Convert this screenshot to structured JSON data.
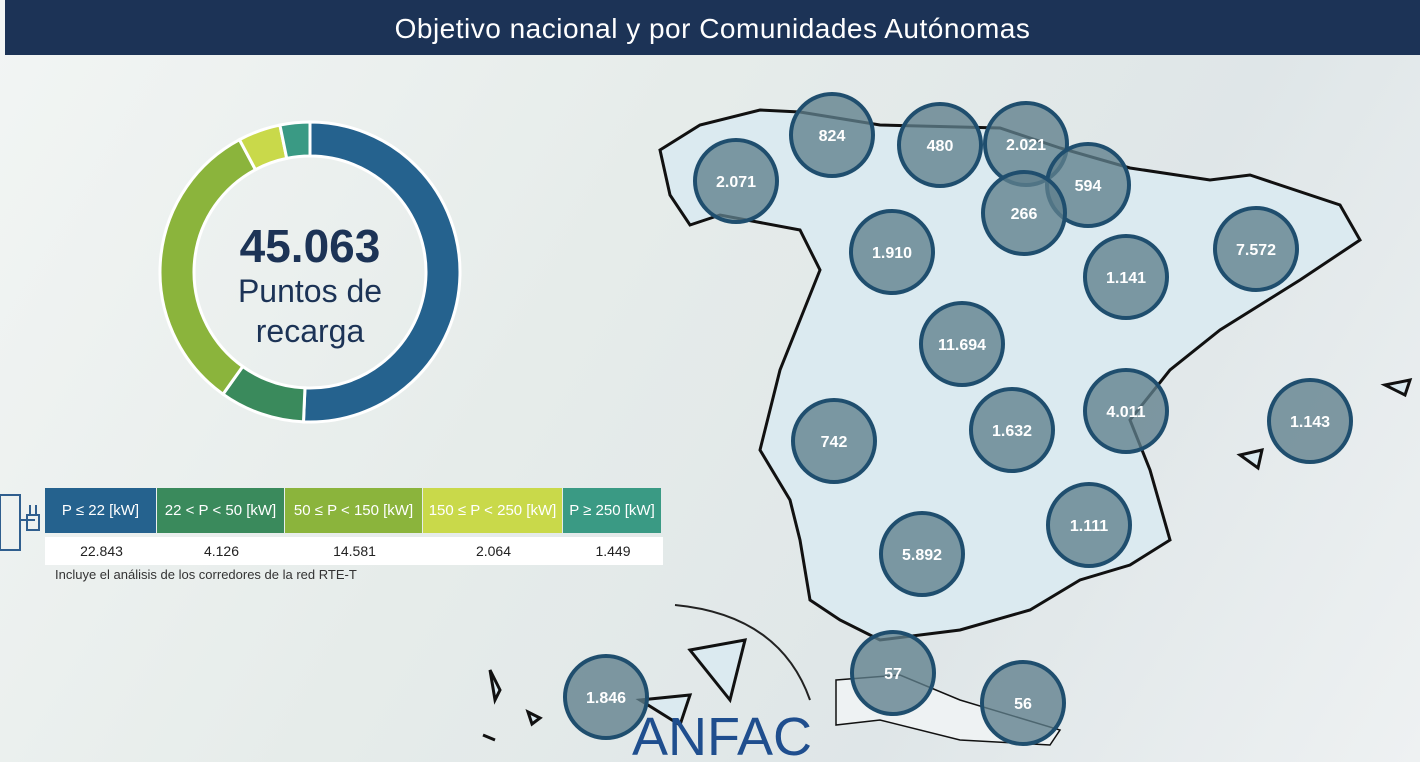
{
  "header": {
    "title": "Objetivo nacional y por Comunidades Autónomas"
  },
  "chart_data": {
    "type": "pie",
    "donut": true,
    "total": {
      "value": 45063,
      "label": "45.063"
    },
    "center_label": "Puntos de recarga",
    "categories": [
      "P ≤ 22 [kW]",
      "22 < P < 50 [kW]",
      "50 ≤ P < 150 [kW]",
      "150 ≤ P < 250 [kW]",
      "P ≥ 250 [kW]"
    ],
    "values": [
      22843,
      4126,
      14581,
      2064,
      1449
    ],
    "value_labels": [
      "22.843",
      "4.126",
      "14.581",
      "2.064",
      "1.449"
    ],
    "colors": [
      "#25628e",
      "#3a8a5c",
      "#8bb43c",
      "#c9d94a",
      "#3a9a84"
    ],
    "note": "Incluye el análisis de los corredores de la red RTE-T"
  },
  "map": {
    "regions": [
      "2.071",
      "824",
      "480",
      "2.021",
      "594",
      "266",
      "1.910",
      "1.141",
      "7.572",
      "11.694",
      "4.011",
      "1.143",
      "742",
      "1.632",
      "1.111",
      "5.892",
      "57",
      "56",
      "1.846"
    ]
  },
  "logo": "ANFAC"
}
